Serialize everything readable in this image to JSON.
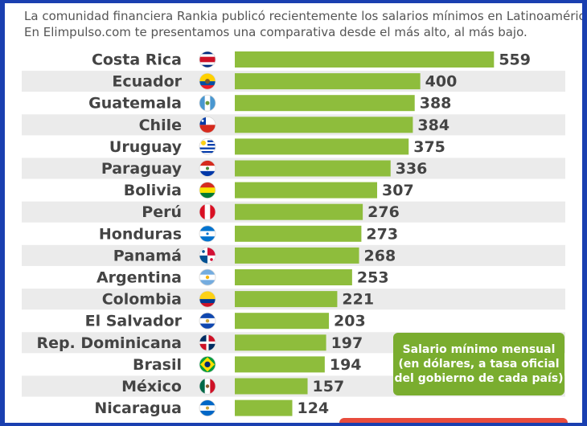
{
  "intro": {
    "line1": "La comunidad financiera Rankia publicó recientemente los salarios mínimos en Latinoamérica.",
    "line2": "En Elimpulso.com te presentamos una comparativa desde el más alto, al más bajo."
  },
  "note": {
    "line1": "Salario mínimo mensual",
    "line2": "(en dólares, a tasa oficial",
    "line3": "del gobierno de cada país)"
  },
  "colors": {
    "bar": "#8ebd3c",
    "stripe": "#ebebeb",
    "label": "#444444",
    "frame": "#1a3fb0",
    "note": "#7aad2f"
  },
  "chart_data": {
    "type": "bar",
    "orientation": "horizontal",
    "categories": [
      "Costa Rica",
      "Ecuador",
      "Guatemala",
      "Chile",
      "Uruguay",
      "Paraguay",
      "Bolivia",
      "Perú",
      "Honduras",
      "Panamá",
      "Argentina",
      "Colombia",
      "El Salvador",
      "Rep. Dominicana",
      "Brasil",
      "México",
      "Nicaragua"
    ],
    "values": [
      559,
      400,
      388,
      384,
      375,
      336,
      307,
      276,
      273,
      268,
      253,
      221,
      203,
      197,
      194,
      157,
      124
    ],
    "flag_icons": [
      "costa-rica-flag-icon",
      "ecuador-flag-icon",
      "guatemala-flag-icon",
      "chile-flag-icon",
      "uruguay-flag-icon",
      "paraguay-flag-icon",
      "bolivia-flag-icon",
      "peru-flag-icon",
      "honduras-flag-icon",
      "panama-flag-icon",
      "argentina-flag-icon",
      "colombia-flag-icon",
      "el-salvador-flag-icon",
      "dominican-republic-flag-icon",
      "brazil-flag-icon",
      "mexico-flag-icon",
      "nicaragua-flag-icon"
    ],
    "data_labels": true,
    "grid": false
  }
}
